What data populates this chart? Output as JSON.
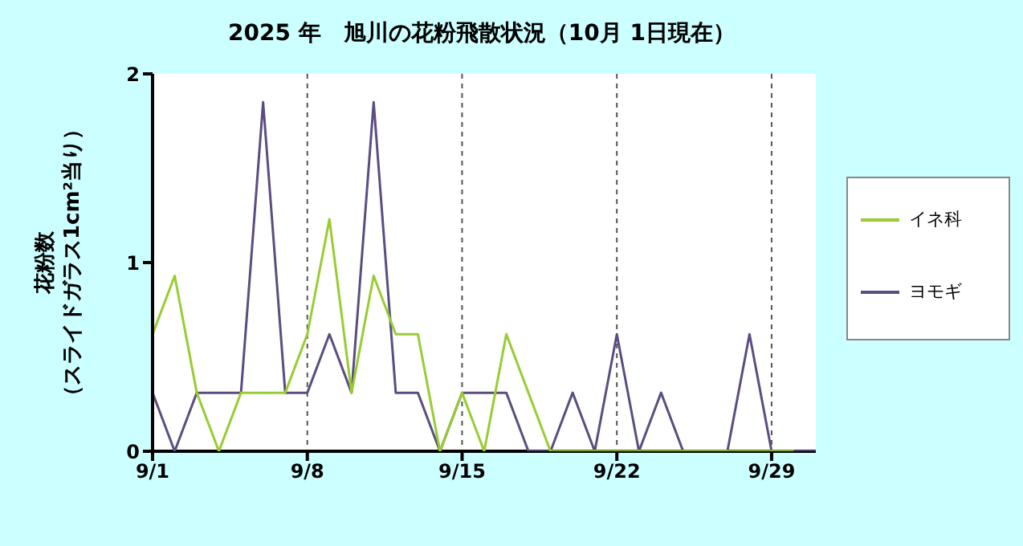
{
  "chart_data": {
    "type": "line",
    "title": "2025 年　旭川の花粉飛散状況（10月 1日現在）",
    "ylabel": "花粉数（スライドガラス1cm²当り）",
    "x": [
      "2025-09-01",
      "2025-09-02",
      "2025-09-03",
      "2025-09-04",
      "2025-09-05",
      "2025-09-06",
      "2025-09-07",
      "2025-09-08",
      "2025-09-09",
      "2025-09-10",
      "2025-09-11",
      "2025-09-12",
      "2025-09-13",
      "2025-09-14",
      "2025-09-15",
      "2025-09-16",
      "2025-09-17",
      "2025-09-18",
      "2025-09-19",
      "2025-09-20",
      "2025-09-21",
      "2025-09-22",
      "2025-09-23",
      "2025-09-24",
      "2025-09-25",
      "2025-09-26",
      "2025-09-27",
      "2025-09-28",
      "2025-09-29",
      "2025-09-30",
      "2025-10-01"
    ],
    "series": [
      {
        "name": "イネ科",
        "color": "#99cc33",
        "values": [
          0.62,
          0.93,
          0.31,
          0,
          0.31,
          0.31,
          0.31,
          0.62,
          1.23,
          0.31,
          0.93,
          0.62,
          0.62,
          0,
          0.31,
          0,
          0.62,
          0.31,
          0,
          0,
          0,
          0,
          0,
          0,
          0,
          0,
          0,
          0,
          0,
          0,
          null
        ]
      },
      {
        "name": "ヨモギ",
        "color": "#5c4d80",
        "values": [
          0.31,
          0,
          0.31,
          0.31,
          0.31,
          1.85,
          0.31,
          0.31,
          0.62,
          0.31,
          1.85,
          0.31,
          0.31,
          0,
          0.31,
          0.31,
          0.31,
          0,
          0,
          0.31,
          0,
          0.62,
          0,
          0.31,
          0,
          0,
          0,
          0.62,
          0,
          0,
          0
        ]
      }
    ],
    "xlim": [
      "2025-09-01",
      "2025-10-01"
    ],
    "xticks": [
      {
        "value": "2025-09-01",
        "label": "9/1"
      },
      {
        "value": "2025-09-08",
        "label": "9/8"
      },
      {
        "value": "2025-09-15",
        "label": "9/15"
      },
      {
        "value": "2025-09-22",
        "label": "9/22"
      },
      {
        "value": "2025-09-29",
        "label": "9/29"
      }
    ],
    "ylim": [
      0,
      2
    ],
    "yticks": [
      0,
      1,
      2
    ],
    "grid": "x",
    "legend": "right",
    "marker": "none",
    "line_style": "solid"
  }
}
